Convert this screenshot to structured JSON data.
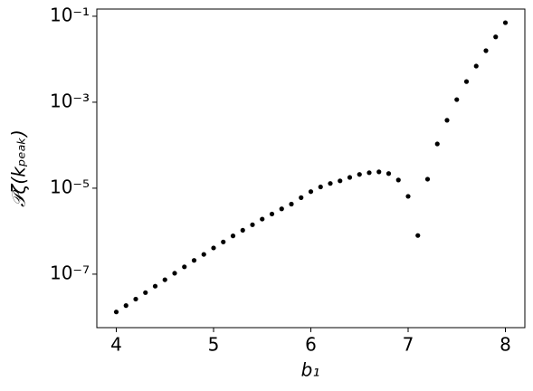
{
  "chart_data": {
    "type": "scatter",
    "x_label": "b₁",
    "y_label": "𝒫ζ(kₚₑₐₖ)",
    "x": [
      4.0,
      4.1,
      4.2,
      4.3,
      4.4,
      4.5,
      4.6,
      4.7,
      4.8,
      4.9,
      5.0,
      5.1,
      5.2,
      5.3,
      5.4,
      5.5,
      5.6,
      5.7,
      5.8,
      5.9,
      6.0,
      6.1,
      6.2,
      6.3,
      6.4,
      6.5,
      6.6,
      6.7,
      6.8,
      6.9,
      7.0,
      7.1,
      7.2,
      7.3,
      7.4,
      7.5,
      7.6,
      7.7,
      7.8,
      7.9,
      8.0
    ],
    "values": [
      1.32e-08,
      1.86e-08,
      2.63e-08,
      3.72e-08,
      5.25e-08,
      7.41e-08,
      1.05e-07,
      1.48e-07,
      2.09e-07,
      2.88e-07,
      4.07e-07,
      5.62e-07,
      7.76e-07,
      1.05e-06,
      1.41e-06,
      1.91e-06,
      2.51e-06,
      3.31e-06,
      4.27e-06,
      6.03e-06,
      8.32e-06,
      1.07e-05,
      1.29e-05,
      1.48e-05,
      1.78e-05,
      2.09e-05,
      2.29e-05,
      2.4e-05,
      2.19e-05,
      1.55e-05,
      6.46e-06,
      7.94e-07,
      1.62e-05,
      0.000107,
      0.00038,
      0.00115,
      0.00302,
      0.00692,
      0.0158,
      0.0331,
      0.0708
    ],
    "color": "#000000",
    "xlim": [
      3.8,
      8.2
    ],
    "xticks": [
      4,
      5,
      6,
      7,
      8
    ],
    "ylim": [
      5.7e-09,
      0.147
    ],
    "y_log": true,
    "yticks": [
      {
        "value": 0.1,
        "label": "10⁻¹"
      },
      {
        "value": 0.001,
        "label": "10⁻³"
      },
      {
        "value": 1e-05,
        "label": "10⁻⁵"
      },
      {
        "value": 1e-07,
        "label": "10⁻⁷"
      }
    ]
  }
}
